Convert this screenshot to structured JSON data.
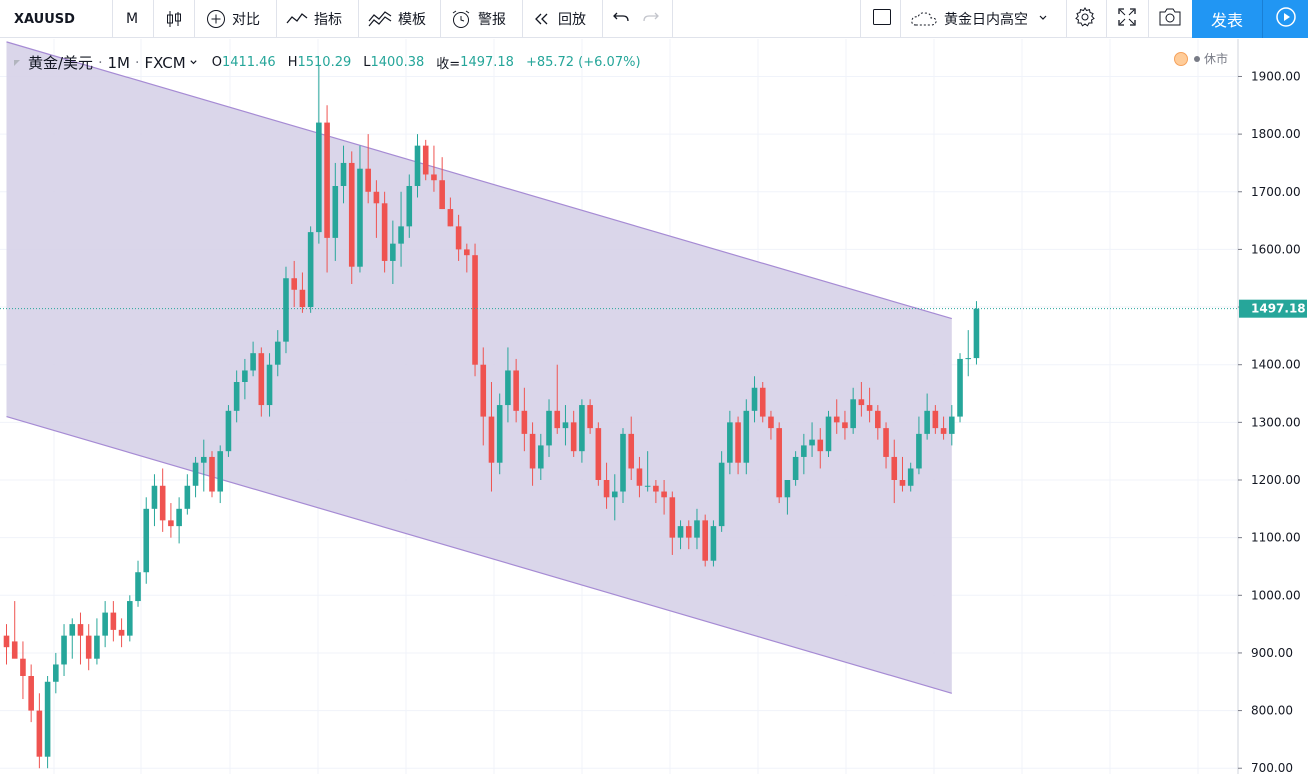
{
  "toolbar": {
    "symbol": "XAUUSD",
    "interval": "M",
    "compare": "对比",
    "indicators": "指标",
    "templates": "模板",
    "alert": "警报",
    "replay": "回放",
    "layout_name": "黄金日内高空",
    "publish": "发表"
  },
  "legend": {
    "symbol_name": "黄金/美元",
    "dot": "·",
    "interval": "1M",
    "exchange": "FXCM",
    "o_label": "O",
    "o": "1411.46",
    "h_label": "H",
    "h": "1510.29",
    "l_label": "L",
    "l": "1400.38",
    "c_label": "收=",
    "c": "1497.18",
    "change": "+85.72 (+6.07%)"
  },
  "market_status": "休市",
  "colors": {
    "up": "#26a69a",
    "down": "#ef5350",
    "channel_fill": "#d6d1e8",
    "channel_line": "#a68bd4",
    "accent": "#2196f3",
    "price_line": "#26a69a"
  },
  "chart_data": {
    "type": "candlestick",
    "y_ticks": [
      "1900.00",
      "1800.00",
      "1700.00",
      "1600.00",
      "1500.00",
      "1400.00",
      "1300.00",
      "1200.00",
      "1100.00",
      "1000.00",
      "900.00",
      "800.00",
      "700.00"
    ],
    "ylim": [
      690,
      1965
    ],
    "last_price": "1497.18",
    "grid": true,
    "channel": {
      "upper": [
        [
          0,
          1960
        ],
        [
          115,
          1480
        ]
      ],
      "lower": [
        [
          0,
          1310
        ],
        [
          115,
          830
        ]
      ]
    },
    "candles": [
      [
        0,
        930,
        950,
        880,
        910
      ],
      [
        1,
        920,
        990,
        900,
        890
      ],
      [
        2,
        890,
        920,
        820,
        860
      ],
      [
        3,
        860,
        880,
        780,
        800
      ],
      [
        4,
        800,
        830,
        700,
        720
      ],
      [
        5,
        720,
        860,
        700,
        850
      ],
      [
        6,
        850,
        900,
        830,
        880
      ],
      [
        7,
        880,
        950,
        860,
        930
      ],
      [
        8,
        930,
        960,
        890,
        950
      ],
      [
        9,
        950,
        970,
        880,
        930
      ],
      [
        10,
        930,
        950,
        870,
        890
      ],
      [
        11,
        890,
        960,
        880,
        930
      ],
      [
        12,
        930,
        990,
        910,
        970
      ],
      [
        13,
        970,
        990,
        920,
        940
      ],
      [
        14,
        940,
        960,
        910,
        930
      ],
      [
        15,
        930,
        1000,
        920,
        990
      ],
      [
        16,
        990,
        1060,
        980,
        1040
      ],
      [
        17,
        1040,
        1170,
        1020,
        1150
      ],
      [
        18,
        1150,
        1210,
        1120,
        1190
      ],
      [
        19,
        1190,
        1220,
        1110,
        1130
      ],
      [
        20,
        1130,
        1160,
        1100,
        1120
      ],
      [
        21,
        1120,
        1170,
        1090,
        1150
      ],
      [
        22,
        1150,
        1210,
        1140,
        1190
      ],
      [
        23,
        1190,
        1240,
        1170,
        1230
      ],
      [
        24,
        1230,
        1270,
        1180,
        1240
      ],
      [
        25,
        1240,
        1250,
        1170,
        1180
      ],
      [
        26,
        1180,
        1260,
        1160,
        1250
      ],
      [
        27,
        1250,
        1330,
        1240,
        1320
      ],
      [
        28,
        1320,
        1390,
        1300,
        1370
      ],
      [
        29,
        1370,
        1410,
        1340,
        1390
      ],
      [
        30,
        1390,
        1440,
        1380,
        1420
      ],
      [
        31,
        1420,
        1430,
        1310,
        1330
      ],
      [
        32,
        1330,
        1420,
        1310,
        1400
      ],
      [
        33,
        1400,
        1460,
        1380,
        1440
      ],
      [
        34,
        1440,
        1570,
        1420,
        1550
      ],
      [
        35,
        1550,
        1580,
        1500,
        1530
      ],
      [
        36,
        1530,
        1560,
        1490,
        1500
      ],
      [
        37,
        1500,
        1640,
        1490,
        1630
      ],
      [
        38,
        1630,
        1920,
        1610,
        1820
      ],
      [
        39,
        1820,
        1850,
        1560,
        1620
      ],
      [
        40,
        1620,
        1750,
        1580,
        1710
      ],
      [
        41,
        1710,
        1780,
        1680,
        1750
      ],
      [
        42,
        1750,
        1770,
        1540,
        1570
      ],
      [
        43,
        1570,
        1780,
        1560,
        1740
      ],
      [
        44,
        1740,
        1800,
        1680,
        1700
      ],
      [
        45,
        1700,
        1720,
        1620,
        1680
      ],
      [
        46,
        1680,
        1700,
        1560,
        1580
      ],
      [
        47,
        1580,
        1650,
        1540,
        1610
      ],
      [
        48,
        1610,
        1700,
        1570,
        1640
      ],
      [
        49,
        1640,
        1730,
        1620,
        1710
      ],
      [
        50,
        1710,
        1800,
        1690,
        1780
      ],
      [
        51,
        1780,
        1790,
        1720,
        1730
      ],
      [
        52,
        1730,
        1780,
        1700,
        1720
      ],
      [
        53,
        1720,
        1760,
        1670,
        1670
      ],
      [
        54,
        1670,
        1690,
        1640,
        1640
      ],
      [
        55,
        1640,
        1660,
        1580,
        1600
      ],
      [
        56,
        1600,
        1610,
        1560,
        1590
      ],
      [
        57,
        1590,
        1610,
        1380,
        1400
      ],
      [
        58,
        1400,
        1430,
        1260,
        1310
      ],
      [
        59,
        1310,
        1370,
        1180,
        1230
      ],
      [
        60,
        1230,
        1350,
        1210,
        1330
      ],
      [
        61,
        1330,
        1430,
        1300,
        1390
      ],
      [
        62,
        1390,
        1410,
        1300,
        1320
      ],
      [
        63,
        1320,
        1360,
        1250,
        1280
      ],
      [
        64,
        1280,
        1300,
        1190,
        1220
      ],
      [
        65,
        1220,
        1280,
        1200,
        1260
      ],
      [
        66,
        1260,
        1340,
        1240,
        1320
      ],
      [
        67,
        1320,
        1400,
        1280,
        1290
      ],
      [
        68,
        1290,
        1330,
        1260,
        1300
      ],
      [
        69,
        1300,
        1320,
        1240,
        1250
      ],
      [
        70,
        1250,
        1340,
        1230,
        1330
      ],
      [
        71,
        1330,
        1340,
        1280,
        1290
      ],
      [
        72,
        1290,
        1300,
        1190,
        1200
      ],
      [
        73,
        1200,
        1230,
        1150,
        1170
      ],
      [
        74,
        1170,
        1210,
        1130,
        1180
      ],
      [
        75,
        1180,
        1290,
        1160,
        1280
      ],
      [
        76,
        1280,
        1310,
        1200,
        1220
      ],
      [
        77,
        1220,
        1240,
        1170,
        1190
      ],
      [
        78,
        1190,
        1250,
        1180,
        1190
      ],
      [
        79,
        1190,
        1200,
        1160,
        1180
      ],
      [
        80,
        1180,
        1200,
        1140,
        1170
      ],
      [
        81,
        1170,
        1180,
        1070,
        1100
      ],
      [
        82,
        1100,
        1130,
        1080,
        1120
      ],
      [
        83,
        1120,
        1130,
        1080,
        1100
      ],
      [
        84,
        1100,
        1150,
        1080,
        1130
      ],
      [
        85,
        1130,
        1140,
        1050,
        1060
      ],
      [
        86,
        1060,
        1130,
        1050,
        1120
      ],
      [
        87,
        1120,
        1250,
        1110,
        1230
      ],
      [
        88,
        1230,
        1320,
        1210,
        1300
      ],
      [
        89,
        1300,
        1310,
        1210,
        1230
      ],
      [
        90,
        1230,
        1340,
        1210,
        1320
      ],
      [
        91,
        1320,
        1380,
        1300,
        1360
      ],
      [
        92,
        1360,
        1370,
        1300,
        1310
      ],
      [
        93,
        1310,
        1320,
        1270,
        1290
      ],
      [
        94,
        1290,
        1300,
        1160,
        1170
      ],
      [
        95,
        1170,
        1200,
        1140,
        1200
      ],
      [
        96,
        1200,
        1250,
        1190,
        1240
      ],
      [
        97,
        1240,
        1280,
        1210,
        1260
      ],
      [
        98,
        1260,
        1300,
        1240,
        1270
      ],
      [
        99,
        1270,
        1290,
        1220,
        1250
      ],
      [
        100,
        1250,
        1320,
        1240,
        1310
      ],
      [
        101,
        1310,
        1340,
        1280,
        1300
      ],
      [
        102,
        1300,
        1320,
        1270,
        1290
      ],
      [
        103,
        1290,
        1360,
        1280,
        1340
      ],
      [
        104,
        1340,
        1370,
        1310,
        1330
      ],
      [
        105,
        1330,
        1360,
        1300,
        1320
      ],
      [
        106,
        1320,
        1330,
        1270,
        1290
      ],
      [
        107,
        1290,
        1300,
        1220,
        1240
      ],
      [
        108,
        1240,
        1270,
        1160,
        1200
      ],
      [
        109,
        1200,
        1240,
        1180,
        1190
      ],
      [
        110,
        1190,
        1230,
        1180,
        1220
      ],
      [
        111,
        1220,
        1310,
        1210,
        1280
      ],
      [
        112,
        1280,
        1350,
        1270,
        1320
      ],
      [
        113,
        1320,
        1330,
        1280,
        1290
      ],
      [
        114,
        1290,
        1310,
        1270,
        1280
      ],
      [
        115,
        1280,
        1330,
        1260,
        1310
      ],
      [
        116,
        1310,
        1420,
        1300,
        1410
      ],
      [
        117,
        1410,
        1460,
        1380,
        1411.46
      ],
      [
        118,
        1411.46,
        1510.29,
        1400.38,
        1497.18
      ]
    ]
  }
}
